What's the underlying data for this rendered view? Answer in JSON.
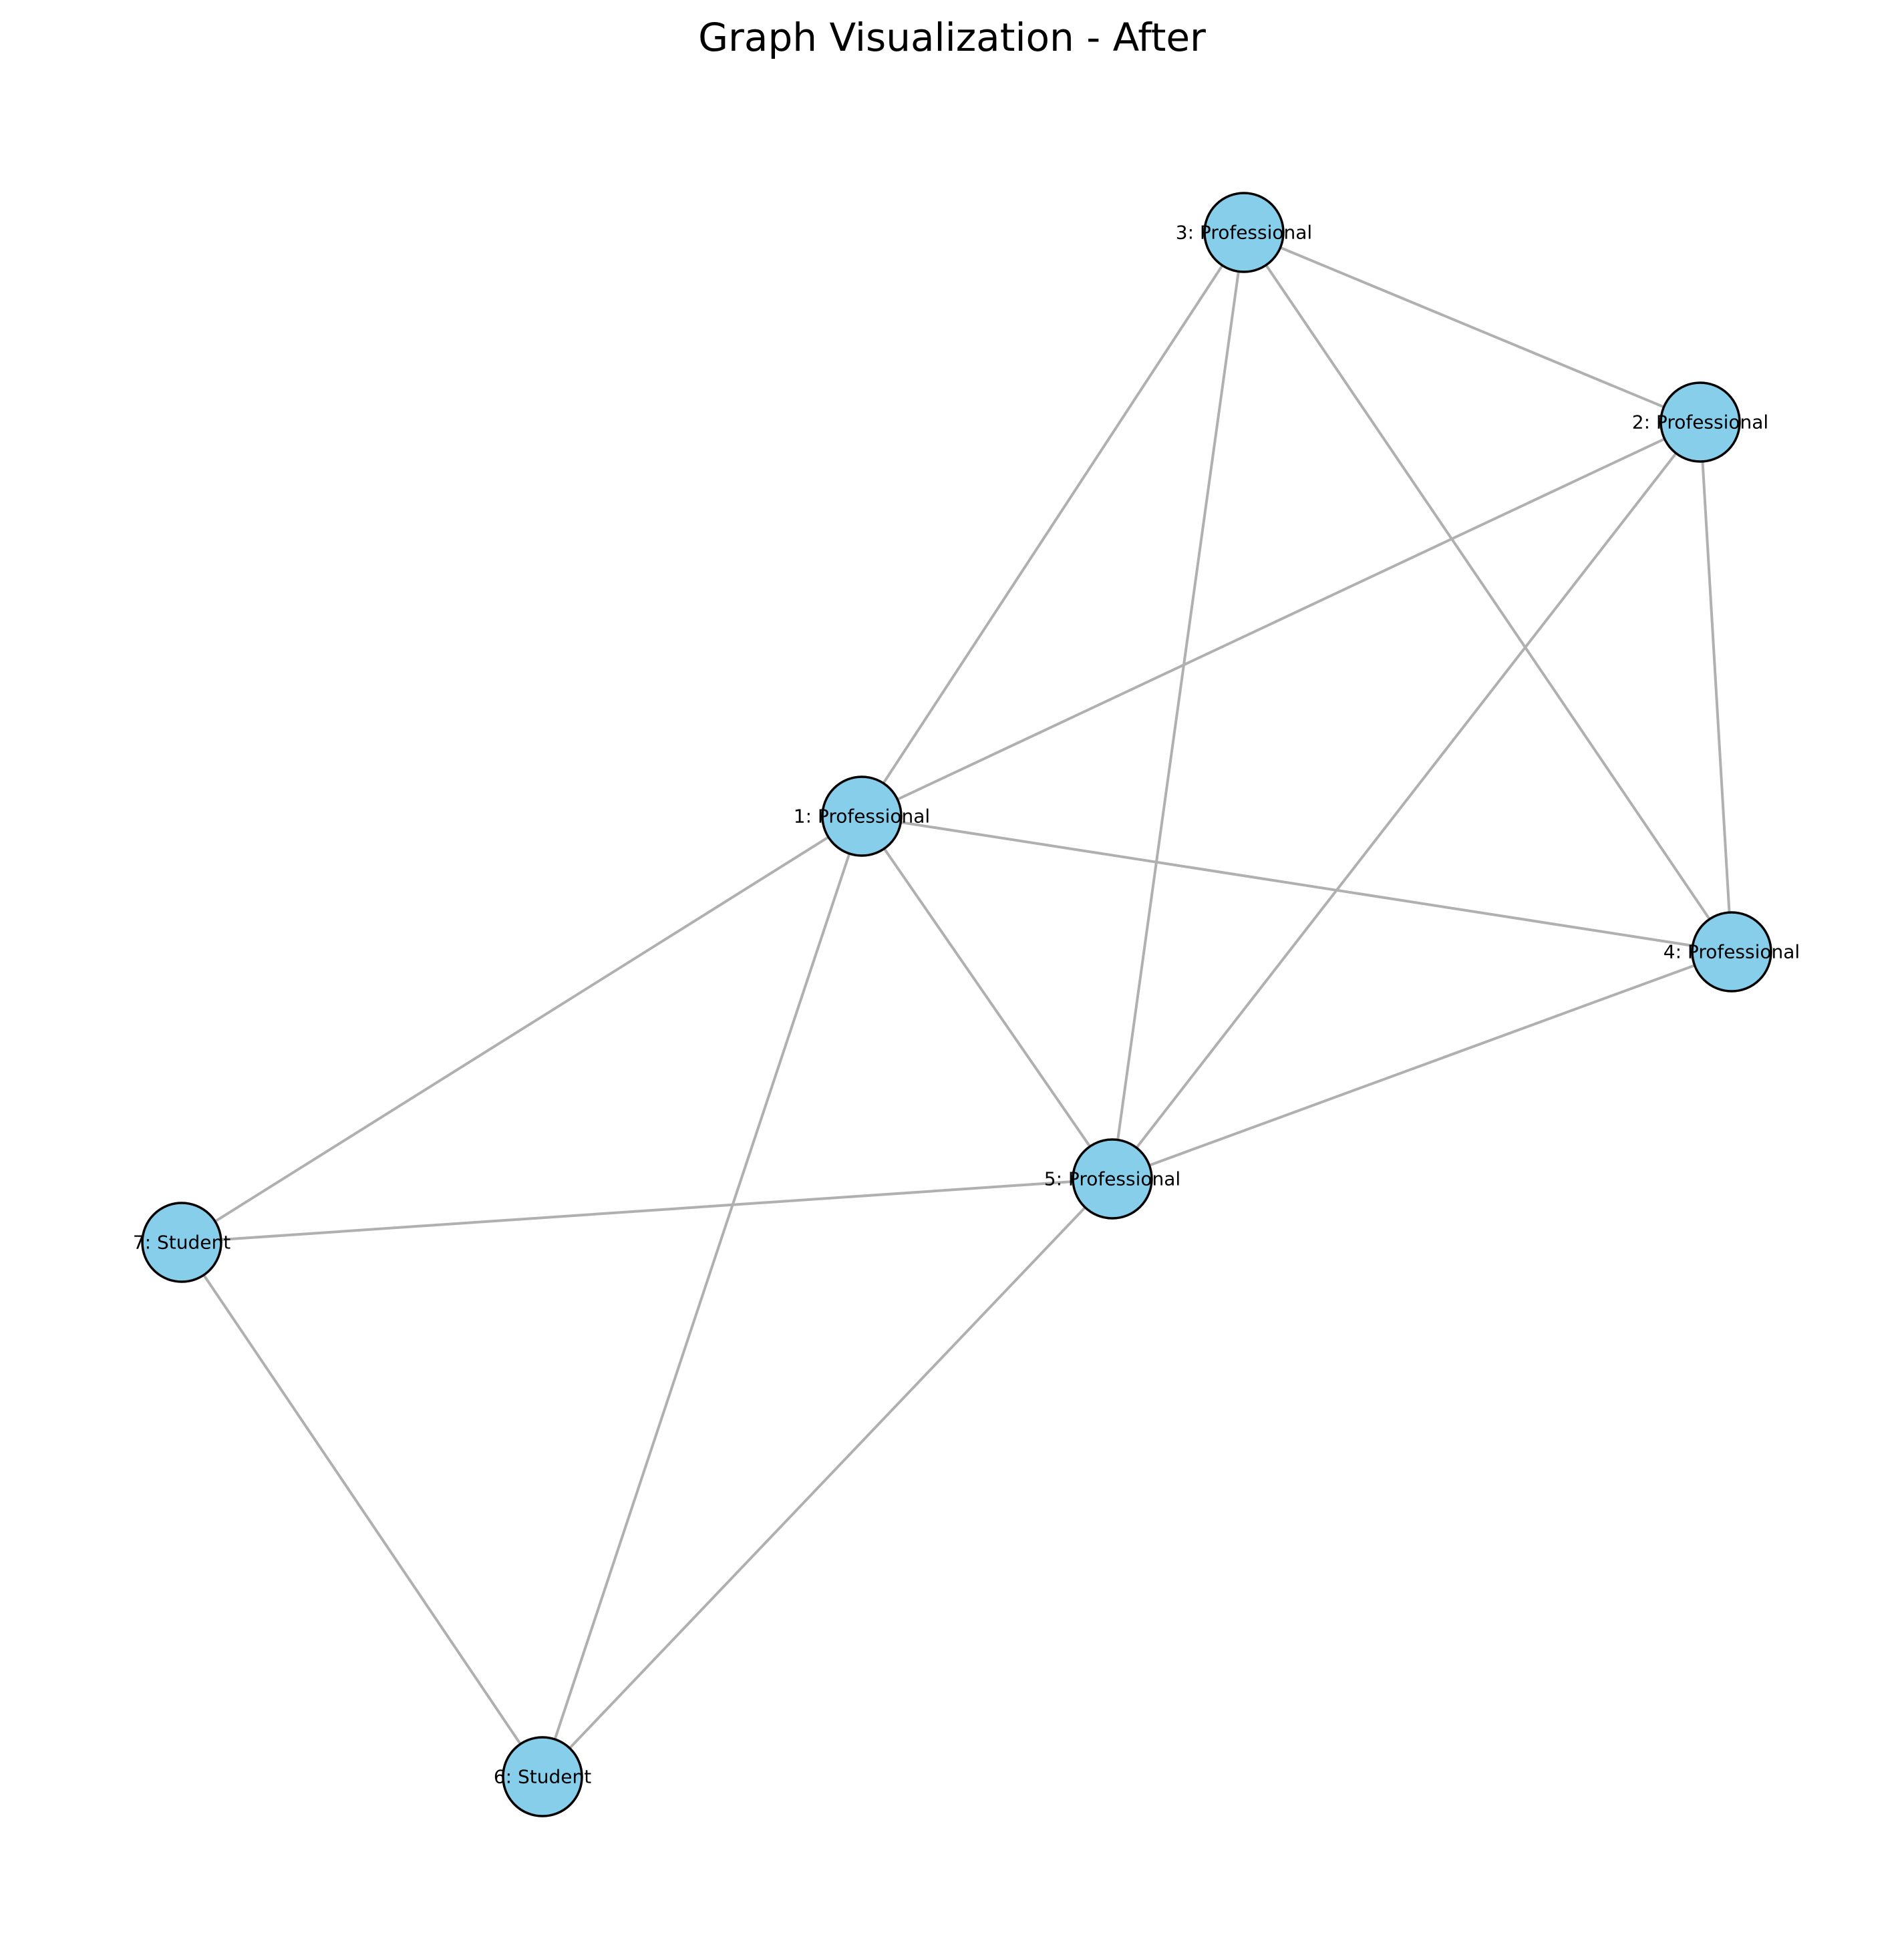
{
  "title": "Graph Visualization - After",
  "colors": {
    "node_fill": "#87ceeb",
    "node_stroke": "#000000",
    "edge": "#b0b0b0"
  },
  "graph": {
    "nodes": [
      {
        "id": "1",
        "label": "1: Professional"
      },
      {
        "id": "2",
        "label": "2: Professional"
      },
      {
        "id": "3",
        "label": "3: Professional"
      },
      {
        "id": "4",
        "label": "4: Professional"
      },
      {
        "id": "5",
        "label": "5: Professional"
      },
      {
        "id": "6",
        "label": "6: Student"
      },
      {
        "id": "7",
        "label": "7: Student"
      }
    ],
    "edges": [
      [
        "3",
        "2"
      ],
      [
        "3",
        "1"
      ],
      [
        "3",
        "5"
      ],
      [
        "3",
        "4"
      ],
      [
        "2",
        "1"
      ],
      [
        "2",
        "5"
      ],
      [
        "2",
        "4"
      ],
      [
        "1",
        "4"
      ],
      [
        "1",
        "5"
      ],
      [
        "1",
        "7"
      ],
      [
        "1",
        "6"
      ],
      [
        "4",
        "5"
      ],
      [
        "5",
        "7"
      ],
      [
        "5",
        "6"
      ],
      [
        "7",
        "6"
      ]
    ]
  }
}
